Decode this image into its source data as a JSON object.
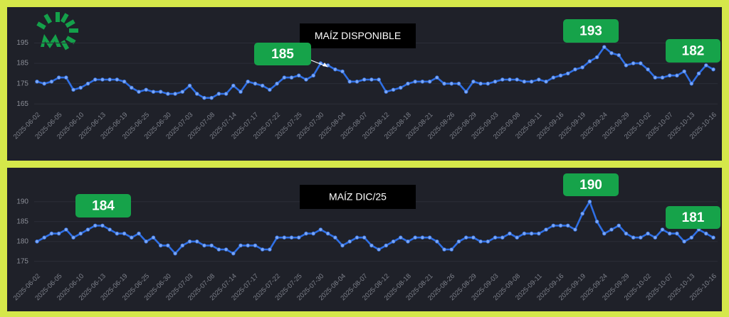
{
  "chart_data": [
    {
      "type": "line",
      "title": "MAÍZ DISPONIBLE",
      "color": "#2f6fe4",
      "grid": true,
      "ylim": [
        163,
        206
      ],
      "yticks": [
        165,
        175,
        185,
        195
      ],
      "categories": [
        "2025-06-02",
        null,
        null,
        "2025-06-05",
        null,
        null,
        "2025-06-10",
        null,
        null,
        "2025-06-13",
        null,
        null,
        "2025-06-19",
        null,
        null,
        "2025-06-25",
        null,
        null,
        "2025-06-30",
        null,
        null,
        "2025-07-03",
        null,
        null,
        "2025-07-08",
        null,
        null,
        "2025-07-14",
        null,
        null,
        "2025-07-17",
        null,
        null,
        "2025-07-22",
        null,
        null,
        "2025-07-25",
        null,
        null,
        "2025-07-30",
        null,
        null,
        "2025-08-04",
        null,
        null,
        "2025-08-07",
        null,
        null,
        "2025-08-12",
        null,
        null,
        "2025-08-18",
        null,
        null,
        "2025-08-21",
        null,
        null,
        "2025-08-26",
        null,
        null,
        "2025-08-29",
        null,
        null,
        "2025-09-03",
        null,
        null,
        "2025-09-08",
        null,
        null,
        "2025-09-11",
        null,
        null,
        "2025-09-16",
        null,
        null,
        "2025-09-19",
        null,
        null,
        "2025-09-24",
        null,
        null,
        "2025-09-29",
        null,
        null,
        "2025-10-02",
        null,
        null,
        "2025-10-07",
        null,
        null,
        "2025-10-13",
        null,
        null,
        "2025-10-16"
      ],
      "values": [
        176,
        175,
        176,
        178,
        178,
        172,
        173,
        175,
        177,
        177,
        177,
        177,
        176,
        173,
        171,
        172,
        171,
        171,
        170,
        170,
        171,
        174,
        170,
        168,
        168,
        170,
        170,
        174,
        171,
        176,
        175,
        174,
        172,
        175,
        178,
        178,
        179,
        177,
        179,
        185,
        184,
        182,
        181,
        176,
        176,
        177,
        177,
        177,
        171,
        172,
        173,
        175,
        176,
        176,
        176,
        178,
        175,
        175,
        175,
        171,
        176,
        175,
        175,
        176,
        177,
        177,
        177,
        176,
        176,
        177,
        176,
        178,
        179,
        180,
        182,
        183,
        186,
        188,
        193,
        190,
        189,
        184,
        185,
        185,
        182,
        178,
        178,
        179,
        179,
        181,
        175,
        180,
        184,
        182
      ],
      "annotations": [
        "185",
        "193",
        "182"
      ]
    },
    {
      "type": "line",
      "title": "MAÍZ DIC/25",
      "color": "#2f6fe4",
      "grid": true,
      "ylim": [
        173,
        193
      ],
      "yticks": [
        175,
        180,
        185,
        190
      ],
      "categories": [
        "2025-06-02",
        null,
        null,
        "2025-06-05",
        null,
        null,
        "2025-06-10",
        null,
        null,
        "2025-06-13",
        null,
        null,
        "2025-06-19",
        null,
        null,
        "2025-06-25",
        null,
        null,
        "2025-06-30",
        null,
        null,
        "2025-07-03",
        null,
        null,
        "2025-07-08",
        null,
        null,
        "2025-07-14",
        null,
        null,
        "2025-07-17",
        null,
        null,
        "2025-07-22",
        null,
        null,
        "2025-07-25",
        null,
        null,
        "2025-07-30",
        null,
        null,
        "2025-08-04",
        null,
        null,
        "2025-08-07",
        null,
        null,
        "2025-08-12",
        null,
        null,
        "2025-08-18",
        null,
        null,
        "2025-08-21",
        null,
        null,
        "2025-08-26",
        null,
        null,
        "2025-08-29",
        null,
        null,
        "2025-09-03",
        null,
        null,
        "2025-09-08",
        null,
        null,
        "2025-09-11",
        null,
        null,
        "2025-09-16",
        null,
        null,
        "2025-09-19",
        null,
        null,
        "2025-09-24",
        null,
        null,
        "2025-09-29",
        null,
        null,
        "2025-10-02",
        null,
        null,
        "2025-10-07",
        null,
        null,
        "2025-10-13",
        null,
        null,
        "2025-10-16"
      ],
      "values": [
        180,
        181,
        182,
        182,
        183,
        181,
        182,
        183,
        184,
        184,
        183,
        182,
        182,
        181,
        182,
        180,
        181,
        179,
        179,
        177,
        179,
        180,
        180,
        179,
        179,
        178,
        178,
        177,
        179,
        179,
        179,
        178,
        178,
        181,
        181,
        181,
        181,
        182,
        182,
        183,
        182,
        181,
        179,
        180,
        181,
        181,
        179,
        178,
        179,
        180,
        181,
        180,
        181,
        181,
        181,
        180,
        178,
        178,
        180,
        181,
        181,
        180,
        180,
        181,
        181,
        182,
        181,
        182,
        182,
        182,
        183,
        184,
        184,
        184,
        183,
        187,
        190,
        185,
        182,
        183,
        184,
        182,
        181,
        181,
        182,
        181,
        183,
        182,
        182,
        180,
        181,
        183,
        182,
        181
      ],
      "annotations": [
        "184",
        "190",
        "181"
      ]
    }
  ]
}
